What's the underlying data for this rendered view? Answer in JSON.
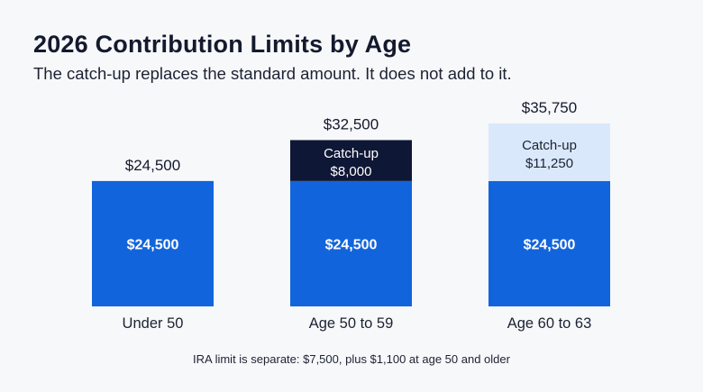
{
  "header": {
    "title": "2026 Contribution Limits by Age",
    "subtitle": "The catch-up replaces the standard amount. It does not add to it."
  },
  "footnote": "IRA limit is separate: $7,500, plus $1,100 at age 50 and older",
  "colors": {
    "standard": "#1264dc",
    "catchup_50_59": "#0f1736",
    "catchup_60_63": "#d9e9fb",
    "catchup_text_dark": "#ffffff",
    "catchup_text_light": "#1c2233"
  },
  "chart_data": {
    "type": "bar",
    "stacked": true,
    "categories": [
      "Under 50",
      "Age 50 to 59",
      "Age 60 to 63"
    ],
    "totals": [
      24500,
      32500,
      35750
    ],
    "total_labels": [
      "$24,500",
      "$32,500",
      "$35,750"
    ],
    "series": [
      {
        "values": [
          24500,
          24500,
          24500
        ],
        "labels": [
          "$24,500",
          "$24,500",
          "$24,500"
        ]
      },
      {
        "name": "Catch-up",
        "values": [
          0,
          8000,
          11250
        ],
        "labels": [
          "",
          "$8,000",
          "$11,250"
        ]
      }
    ],
    "ylim": [
      0,
      35750
    ],
    "grid": false,
    "legend": "none"
  }
}
